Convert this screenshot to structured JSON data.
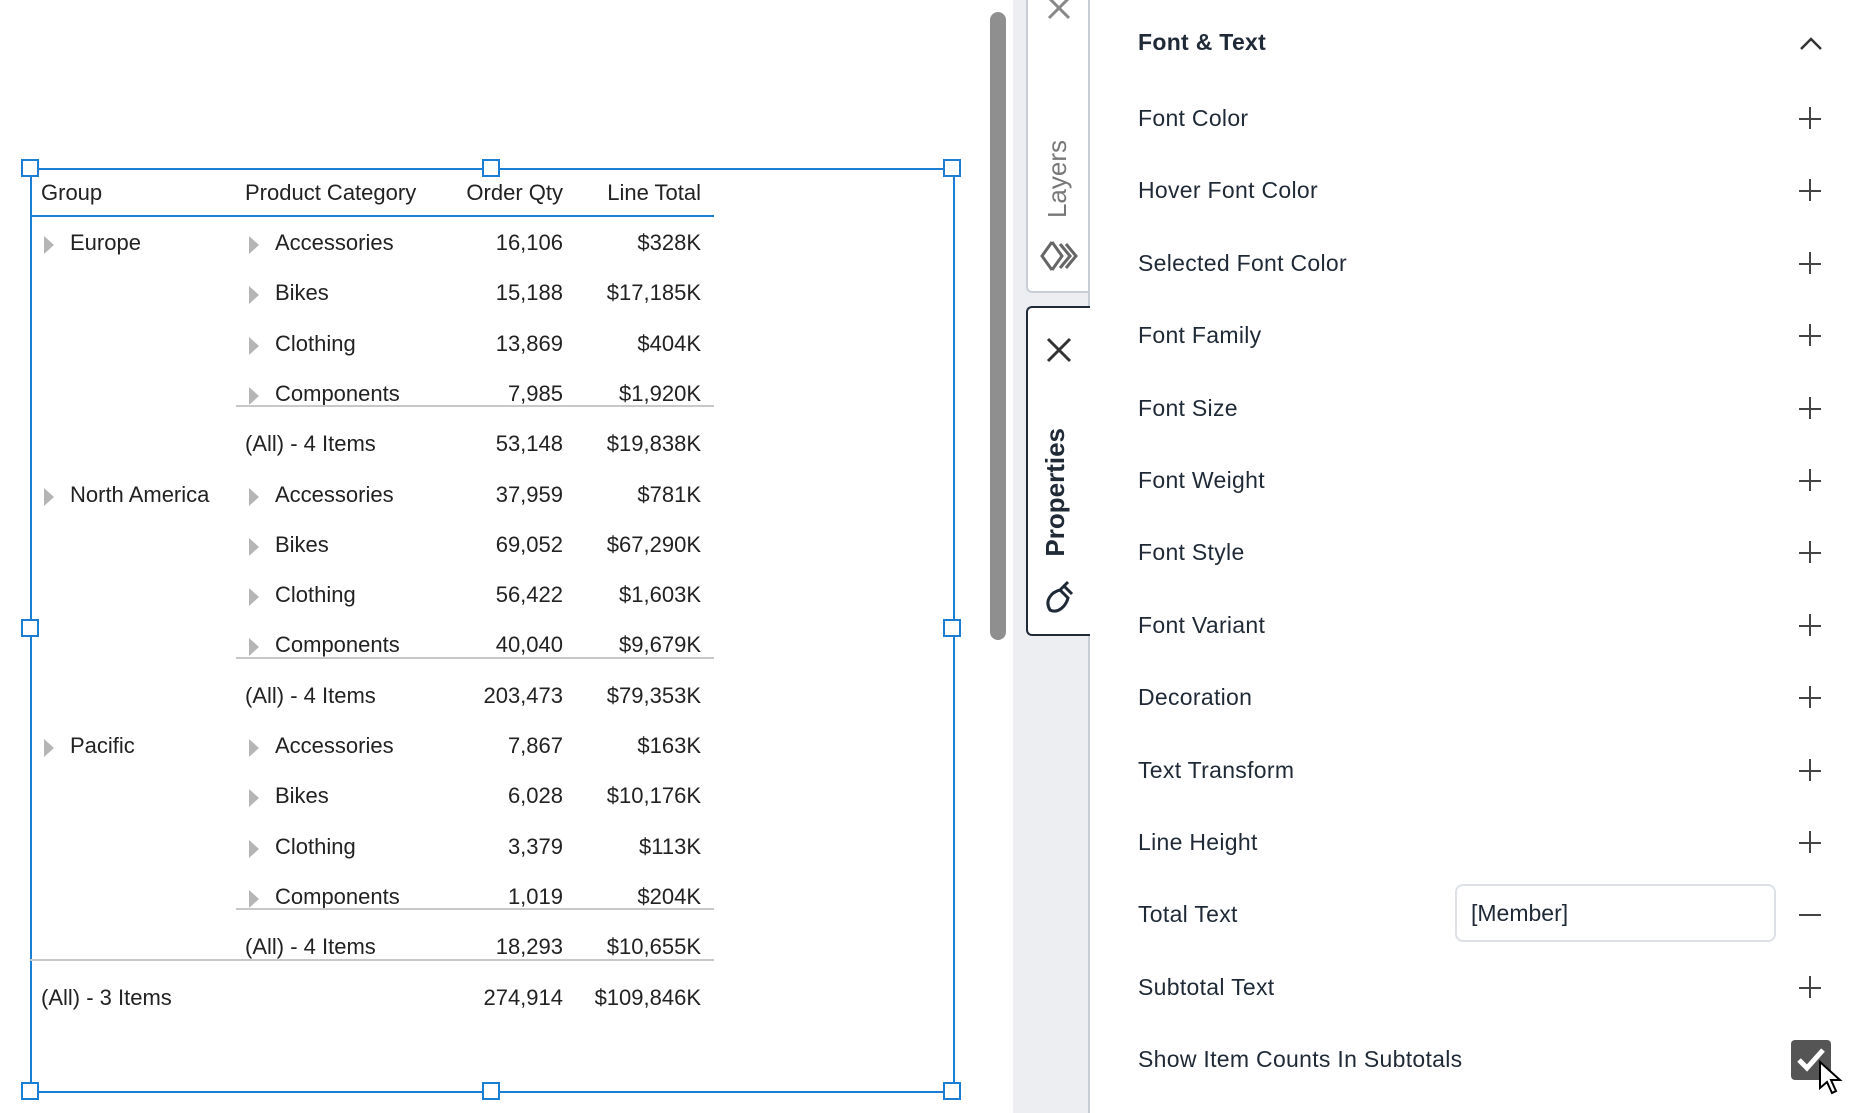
{
  "table": {
    "headers": [
      "Group",
      "Product Category",
      "Order Qty",
      "Line Total"
    ],
    "rows": [
      {
        "group": "Europe",
        "category": "Accessories",
        "qty": "16,106",
        "total": "$328K"
      },
      {
        "group": "",
        "category": "Bikes",
        "qty": "15,188",
        "total": "$17,185K"
      },
      {
        "group": "",
        "category": "Clothing",
        "qty": "13,869",
        "total": "$404K"
      },
      {
        "group": "",
        "category": "Components",
        "qty": "7,985",
        "total": "$1,920K"
      },
      {
        "group": "",
        "category": "(All) - 4 Items",
        "qty": "53,148",
        "total": "$19,838K",
        "subtotal": true
      },
      {
        "group": "North America",
        "category": "Accessories",
        "qty": "37,959",
        "total": "$781K"
      },
      {
        "group": "",
        "category": "Bikes",
        "qty": "69,052",
        "total": "$67,290K"
      },
      {
        "group": "",
        "category": "Clothing",
        "qty": "56,422",
        "total": "$1,603K"
      },
      {
        "group": "",
        "category": "Components",
        "qty": "40,040",
        "total": "$9,679K"
      },
      {
        "group": "",
        "category": "(All) - 4 Items",
        "qty": "203,473",
        "total": "$79,353K",
        "subtotal": true
      },
      {
        "group": "Pacific",
        "category": "Accessories",
        "qty": "7,867",
        "total": "$163K"
      },
      {
        "group": "",
        "category": "Bikes",
        "qty": "6,028",
        "total": "$10,176K"
      },
      {
        "group": "",
        "category": "Clothing",
        "qty": "3,379",
        "total": "$113K"
      },
      {
        "group": "",
        "category": "Components",
        "qty": "1,019",
        "total": "$204K"
      },
      {
        "group": "",
        "category": "(All) - 4 Items",
        "qty": "18,293",
        "total": "$10,655K",
        "subtotal": true
      }
    ],
    "grand_total": {
      "label": "(All) - 3 Items",
      "qty": "274,914",
      "total": "$109,846K"
    }
  },
  "side_tabs": {
    "layers": "Layers",
    "properties": "Properties"
  },
  "panel": {
    "section_title": "Font & Text",
    "rows": [
      {
        "label": "Font Color",
        "action": "plus"
      },
      {
        "label": "Hover Font Color",
        "action": "plus"
      },
      {
        "label": "Selected Font Color",
        "action": "plus"
      },
      {
        "label": "Font Family",
        "action": "plus"
      },
      {
        "label": "Font Size",
        "action": "plus"
      },
      {
        "label": "Font Weight",
        "action": "plus"
      },
      {
        "label": "Font Style",
        "action": "plus"
      },
      {
        "label": "Font Variant",
        "action": "plus"
      },
      {
        "label": "Decoration",
        "action": "plus"
      },
      {
        "label": "Text Transform",
        "action": "plus"
      },
      {
        "label": "Line Height",
        "action": "plus"
      },
      {
        "label": "Total Text",
        "action": "minus",
        "value": "[Member]"
      },
      {
        "label": "Subtotal Text",
        "action": "plus"
      },
      {
        "label": "Show Item Counts In Subtotals",
        "action": "checkbox",
        "checked": true
      }
    ]
  },
  "colors": {
    "selection": "#1a7fd4",
    "accent_text": "#1f2a36"
  }
}
